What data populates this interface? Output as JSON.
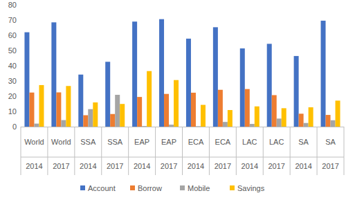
{
  "chart_data": {
    "type": "bar",
    "categories": [
      "World",
      "World",
      "SSA",
      "SSA",
      "EAP",
      "EAP",
      "ECA",
      "ECA",
      "LAC",
      "LAC",
      "SA",
      "SA"
    ],
    "category_years": [
      "2014",
      "2017",
      "2014",
      "2017",
      "2014",
      "2017",
      "2014",
      "2017",
      "2014",
      "2017",
      "2014",
      "2017"
    ],
    "series": [
      {
        "name": "Account",
        "color": "#4472c4",
        "values": [
          62,
          68.5,
          34.2,
          42.6,
          69,
          70.6,
          57.8,
          65.3,
          51.4,
          54.4,
          46.4,
          69.6
        ]
      },
      {
        "name": "Borrow",
        "color": "#ed7d31",
        "values": [
          22.4,
          22.5,
          7.5,
          8.3,
          19.5,
          21.5,
          22.3,
          24.2,
          24.7,
          20.7,
          8.5,
          7.7
        ]
      },
      {
        "name": "Mobile",
        "color": "#a5a5a5",
        "values": [
          2,
          4.3,
          11.5,
          20.9,
          0.4,
          1.3,
          0.3,
          3.1,
          1.8,
          5.3,
          2.4,
          4.2
        ]
      },
      {
        "name": "Savings",
        "color": "#ffc000",
        "values": [
          27.3,
          26.7,
          15.9,
          14.9,
          36.5,
          30.6,
          14.3,
          10.9,
          13.3,
          12.1,
          12.7,
          17.1
        ]
      }
    ],
    "ylim": [
      0,
      80
    ],
    "yticks": [
      0,
      10,
      20,
      30,
      40,
      50,
      60,
      70,
      80
    ],
    "grid": false,
    "legend": "bottom"
  }
}
